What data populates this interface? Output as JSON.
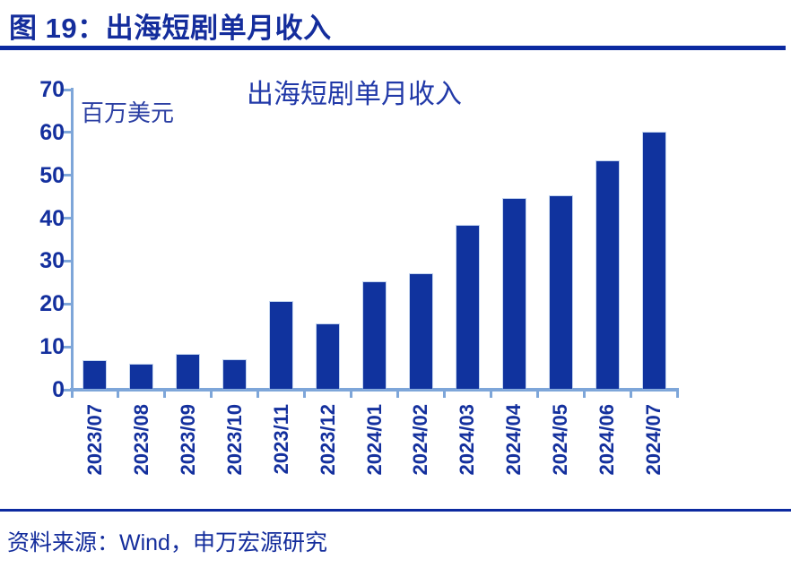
{
  "header": {
    "title": "图 19：出海短剧单月收入"
  },
  "footer": {
    "source": "资料来源：Wind，申万宏源研究"
  },
  "chart_data": {
    "type": "bar",
    "title": "出海短剧单月收入",
    "unit_label": "百万美元",
    "xlabel": "",
    "ylabel": "百万美元",
    "categories": [
      "2023/07",
      "2023/08",
      "2023/09",
      "2023/10",
      "2023/11",
      "2023/12",
      "2024/01",
      "2024/02",
      "2024/03",
      "2024/04",
      "2024/05",
      "2024/06",
      "2024/07"
    ],
    "values": [
      6.5,
      5.7,
      8.0,
      6.6,
      20.2,
      15.0,
      24.9,
      26.8,
      38.0,
      44.3,
      44.9,
      53.0,
      59.8
    ],
    "ylim": [
      0,
      70
    ],
    "yticks": [
      0,
      10,
      20,
      30,
      40,
      50,
      60,
      70
    ],
    "grid": false,
    "legend_position": "none"
  },
  "colors": {
    "header_text": "#142d9c",
    "chart_title_text": "#2139a8",
    "unit_label_text": "#2b3fa3",
    "tick_label_text": "#14309e",
    "bar_fill": "#10339e",
    "axis_line": "#7ea6d9",
    "rule_line": "#0c2aa0",
    "footer_text": "#142d9c",
    "background": "#ffffff"
  }
}
